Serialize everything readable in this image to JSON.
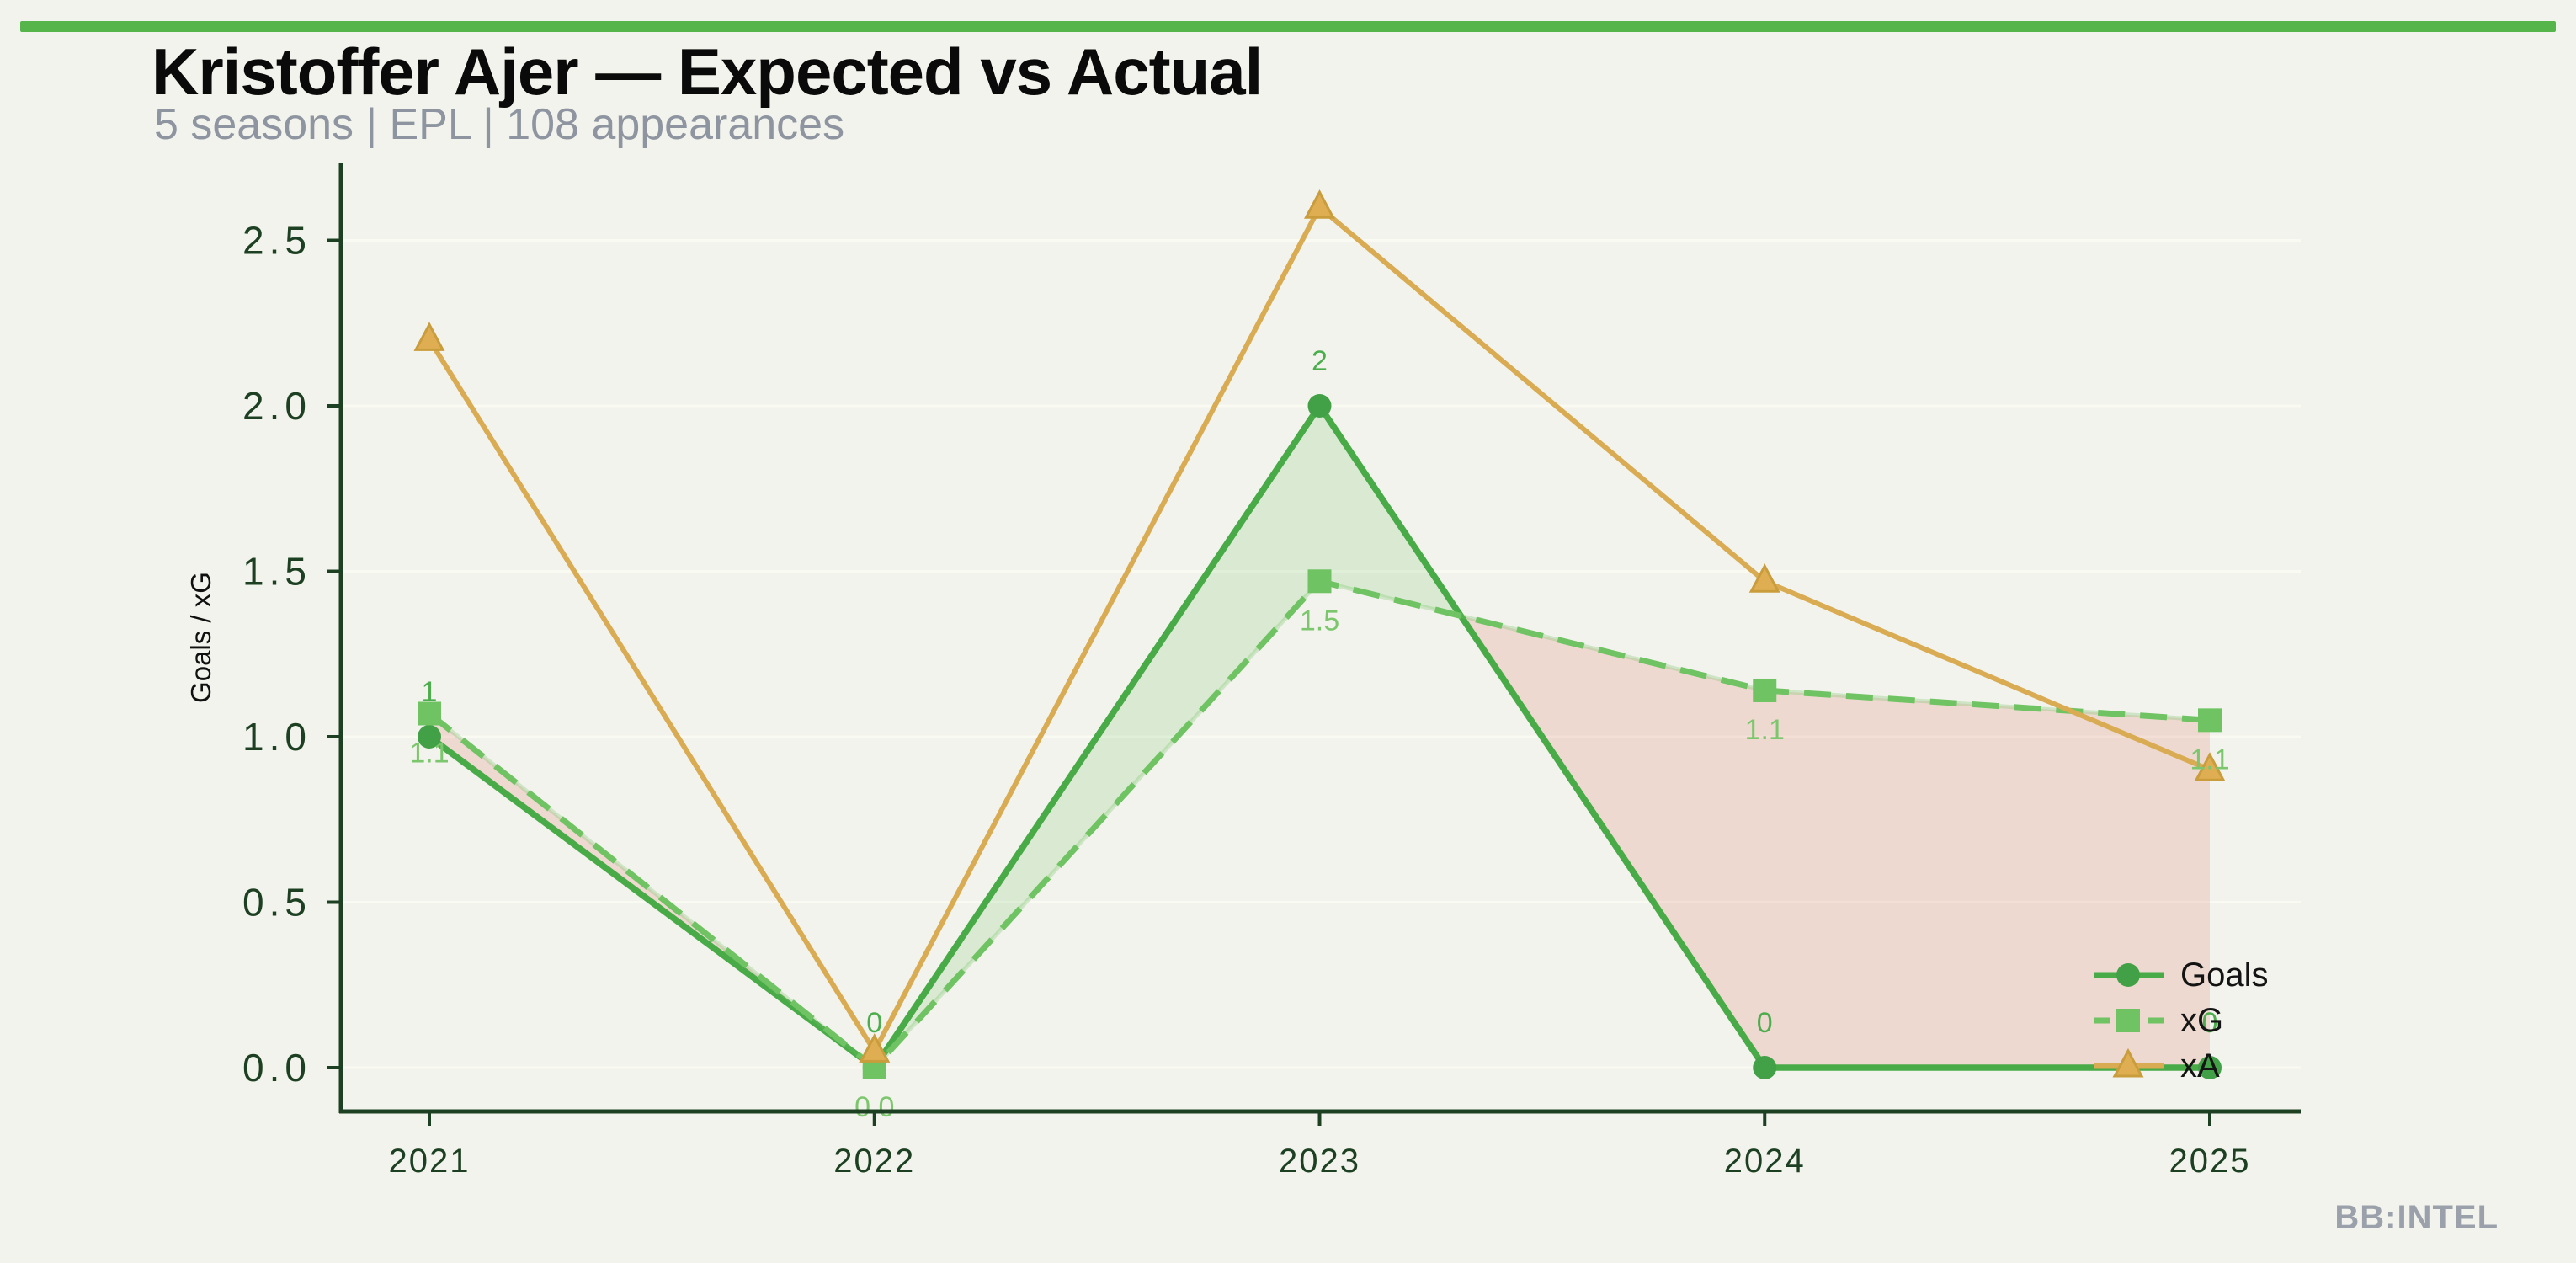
{
  "page": {
    "background_color": "#f2f3ec",
    "accent_bar_color": "#55b54b"
  },
  "header": {
    "title": "Kristoffer Ajer — Expected vs Actual",
    "subtitle": "5 seasons | EPL | 108 appearances"
  },
  "watermark": "BB:INTEL",
  "chart_data": {
    "type": "line",
    "title": "Kristoffer Ajer — Expected vs Actual",
    "xlabel": "",
    "ylabel": "Goals / xG",
    "x_tick_labels": [
      "2021",
      "2022",
      "2023",
      "2024",
      "2025"
    ],
    "ytick_labels": [
      "0.0",
      "0.5",
      "1.0",
      "1.5",
      "2.0",
      "2.5"
    ],
    "yticks": [
      0.0,
      0.5,
      1.0,
      1.5,
      2.0,
      2.5
    ],
    "ylim": [
      -0.13,
      2.74
    ],
    "grid": "horizontal",
    "legend_position": "lower right",
    "axis_color": "#1d4023",
    "tick_label_color": "#1d4023",
    "series": [
      {
        "name": "Goals",
        "values": [
          1,
          0,
          2,
          0,
          0
        ],
        "point_labels": [
          "1",
          "0",
          "2",
          "0",
          "0"
        ],
        "label_position": "above",
        "label_color": "#4bad4c",
        "color": "#48ab47",
        "marker_color": "#42a047",
        "marker": "circle",
        "line_style": "solid"
      },
      {
        "name": "xG",
        "values": [
          1.07,
          0.0,
          1.47,
          1.14,
          1.05
        ],
        "point_labels": [
          "1.1",
          "0.0",
          "1.5",
          "1.1",
          "1.1"
        ],
        "label_position": "below",
        "label_color": "#7cc76d",
        "color": "#6fc362",
        "marker_color": "#6fc362",
        "marker": "square",
        "line_style": "dashed"
      },
      {
        "name": "xA",
        "values": [
          2.2,
          0.05,
          2.6,
          1.47,
          0.9
        ],
        "point_labels": [],
        "label_position": "none",
        "label_color": "#d9ab52",
        "color": "#d9ab52",
        "marker_color": "#dfae52",
        "marker": "triangle",
        "line_style": "solid"
      }
    ],
    "fills": {
      "between": [
        "Goals",
        "xG"
      ],
      "positive_color": "rgba(93,186,74,0.16)",
      "negative_color": "rgba(213,87,73,0.17)"
    }
  }
}
